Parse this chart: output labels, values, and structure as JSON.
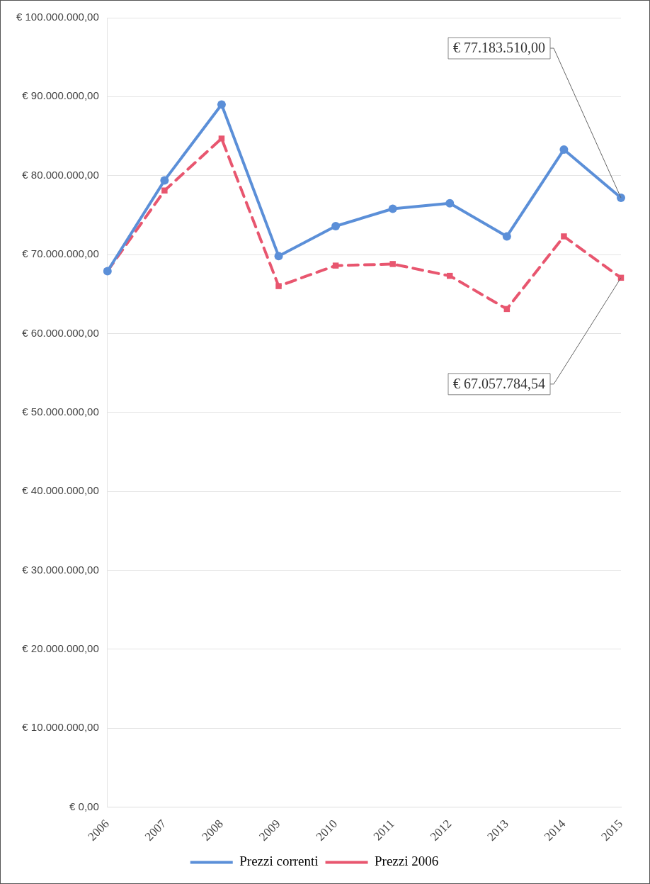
{
  "chart_data": {
    "type": "line",
    "categories": [
      "2006",
      "2007",
      "2008",
      "2009",
      "2010",
      "2011",
      "2012",
      "2013",
      "2014",
      "2015"
    ],
    "series": [
      {
        "name": "Prezzi correnti",
        "color": "#5b8fd8",
        "marker": "circle",
        "line_style": "solid",
        "values": [
          67900000,
          79400000,
          89000000,
          69800000,
          73600000,
          75800000,
          76500000,
          72300000,
          83300000,
          77183510
        ]
      },
      {
        "name": "Prezzi 2006",
        "color": "#e8566f",
        "marker": "square",
        "line_style": "dashed",
        "values": [
          67900000,
          78100000,
          84700000,
          66000000,
          68600000,
          68800000,
          67300000,
          63100000,
          72300000,
          67057784.54
        ]
      }
    ],
    "ylim": [
      0,
      100000000
    ],
    "yticks": [
      {
        "value": 0,
        "label": "€ 0,00"
      },
      {
        "value": 10000000,
        "label": "€ 10.000.000,00"
      },
      {
        "value": 20000000,
        "label": "€ 20.000.000,00"
      },
      {
        "value": 30000000,
        "label": "€ 30.000.000,00"
      },
      {
        "value": 40000000,
        "label": "€ 40.000.000,00"
      },
      {
        "value": 50000000,
        "label": "€ 50.000.000,00"
      },
      {
        "value": 60000000,
        "label": "€ 60.000.000,00"
      },
      {
        "value": 70000000,
        "label": "€ 70.000.000,00"
      },
      {
        "value": 80000000,
        "label": "€ 80.000.000,00"
      },
      {
        "value": 90000000,
        "label": "€ 90.000.000,00"
      },
      {
        "value": 100000000,
        "label": "€ 100.000.000,00"
      }
    ],
    "annotations": [
      {
        "text": "€ 77.183.510,00",
        "x": "2015",
        "y": 77183510
      },
      {
        "text": "€ 67.057.784,54",
        "x": "2015",
        "y": 67057784.54
      }
    ],
    "grid": "y",
    "legend": "bottom"
  }
}
